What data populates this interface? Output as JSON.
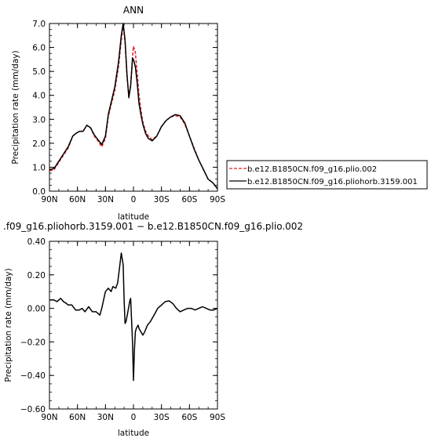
{
  "chart_data": [
    {
      "type": "line",
      "title": "ANN",
      "xlabel": "latitude",
      "ylabel": "Precipitation rate (mm/day)",
      "xlim": [
        90,
        -90
      ],
      "ylim": [
        0,
        7
      ],
      "x_ticks": [
        90,
        60,
        30,
        0,
        -30,
        -60,
        -90
      ],
      "x_tick_labels": [
        "90N",
        "60N",
        "30N",
        "0",
        "30S",
        "60S",
        "90S"
      ],
      "y_ticks": [
        0,
        1,
        2,
        3,
        4,
        5,
        6,
        7
      ],
      "y_tick_labels": [
        "0.0",
        "1.0",
        "2.0",
        "3.0",
        "4.0",
        "5.0",
        "6.0",
        "7.0"
      ],
      "legend_position": "right",
      "series": [
        {
          "name": "b.e12.B1850CN.f09_g16.plio.002",
          "color": "#e02020",
          "style": "dashed",
          "x": [
            90,
            85,
            80,
            75,
            70,
            65,
            62,
            58,
            54,
            50,
            46,
            42,
            38,
            34,
            30,
            27,
            24,
            20,
            16,
            13,
            11,
            9,
            7,
            5,
            3,
            1,
            0,
            -2,
            -4,
            -6,
            -8,
            -10,
            -13,
            -16,
            -20,
            -25,
            -30,
            -35,
            -40,
            -45,
            -50,
            -55,
            -60,
            -65,
            -70,
            -75,
            -80,
            -85,
            -90
          ],
          "y": [
            0.85,
            0.9,
            1.2,
            1.5,
            1.8,
            2.3,
            2.4,
            2.5,
            2.5,
            2.75,
            2.65,
            2.3,
            2.1,
            1.85,
            2.2,
            3.1,
            3.6,
            4.2,
            5.2,
            6.3,
            6.95,
            6.2,
            4.8,
            4.0,
            4.4,
            5.6,
            6.05,
            5.8,
            4.9,
            4.0,
            3.4,
            2.9,
            2.5,
            2.3,
            2.15,
            2.3,
            2.7,
            2.95,
            3.1,
            3.15,
            3.1,
            2.8,
            2.3,
            1.8,
            1.3,
            0.9,
            0.5,
            0.35,
            0.1
          ]
        },
        {
          "name": "b.e12.B1850CN.f09_g16.pliohorb.3159.001",
          "color": "#000000",
          "style": "solid",
          "x": [
            90,
            85,
            80,
            75,
            70,
            65,
            62,
            58,
            54,
            50,
            46,
            42,
            38,
            34,
            30,
            27,
            24,
            20,
            16,
            13,
            11,
            9,
            7,
            5,
            3,
            1,
            0,
            -2,
            -4,
            -6,
            -8,
            -10,
            -13,
            -16,
            -20,
            -25,
            -30,
            -35,
            -40,
            -45,
            -50,
            -55,
            -60,
            -65,
            -70,
            -75,
            -80,
            -85,
            -90
          ],
          "y": [
            0.9,
            0.95,
            1.25,
            1.55,
            1.85,
            2.3,
            2.4,
            2.5,
            2.5,
            2.75,
            2.65,
            2.35,
            2.15,
            1.95,
            2.3,
            3.2,
            3.7,
            4.35,
            5.4,
            6.5,
            7.0,
            6.3,
            4.9,
            3.9,
            4.4,
            5.55,
            5.5,
            5.2,
            4.5,
            3.65,
            3.2,
            2.8,
            2.4,
            2.2,
            2.1,
            2.3,
            2.7,
            2.95,
            3.1,
            3.2,
            3.15,
            2.85,
            2.3,
            1.75,
            1.3,
            0.9,
            0.5,
            0.35,
            0.1
          ]
        }
      ]
    },
    {
      "type": "line",
      "title": ".f09_g16.pliohorb.3159.001 − b.e12.B1850CN.f09_g16.plio.002",
      "xlabel": "latitude",
      "ylabel": "Precipitation rate (mm/day)",
      "xlim": [
        90,
        -90
      ],
      "ylim": [
        -0.6,
        0.4
      ],
      "x_ticks": [
        90,
        60,
        30,
        0,
        -30,
        -60,
        -90
      ],
      "x_tick_labels": [
        "90N",
        "60N",
        "30N",
        "0",
        "30S",
        "60S",
        "90S"
      ],
      "y_ticks": [
        -0.6,
        -0.4,
        -0.2,
        0,
        0.2,
        0.4
      ],
      "y_tick_labels": [
        "−0.60",
        "−0.40",
        "−0.20",
        "0.00",
        "0.20",
        "0.40"
      ],
      "series": [
        {
          "color": "#000000",
          "style": "solid",
          "x": [
            90,
            85,
            82,
            78,
            75,
            72,
            70,
            66,
            62,
            58,
            55,
            52,
            48,
            44,
            40,
            36,
            34,
            30,
            27,
            24,
            22,
            19,
            17,
            15,
            13,
            11,
            10,
            9,
            8,
            6,
            4,
            3,
            1,
            0,
            -1,
            -2,
            -3,
            -5,
            -6,
            -8,
            -10,
            -12,
            -15,
            -18,
            -22,
            -26,
            -30,
            -34,
            -38,
            -42,
            -46,
            -50,
            -54,
            -58,
            -62,
            -66,
            -70,
            -74,
            -78,
            -82,
            -86,
            -90
          ],
          "y": [
            0.05,
            0.05,
            0.04,
            0.06,
            0.04,
            0.03,
            0.02,
            0.02,
            -0.01,
            -0.01,
            0.0,
            -0.02,
            0.01,
            -0.02,
            -0.02,
            -0.04,
            0.0,
            0.1,
            0.12,
            0.1,
            0.13,
            0.12,
            0.15,
            0.24,
            0.33,
            0.26,
            0.05,
            -0.09,
            -0.08,
            -0.02,
            0.04,
            0.06,
            -0.2,
            -0.43,
            -0.25,
            -0.14,
            -0.12,
            -0.1,
            -0.12,
            -0.14,
            -0.16,
            -0.14,
            -0.1,
            -0.08,
            -0.04,
            0.0,
            0.02,
            0.04,
            0.045,
            0.03,
            0.0,
            -0.02,
            -0.01,
            0.0,
            0.0,
            -0.01,
            0.0,
            0.01,
            0.0,
            -0.01,
            -0.01,
            0.0
          ]
        }
      ]
    }
  ]
}
